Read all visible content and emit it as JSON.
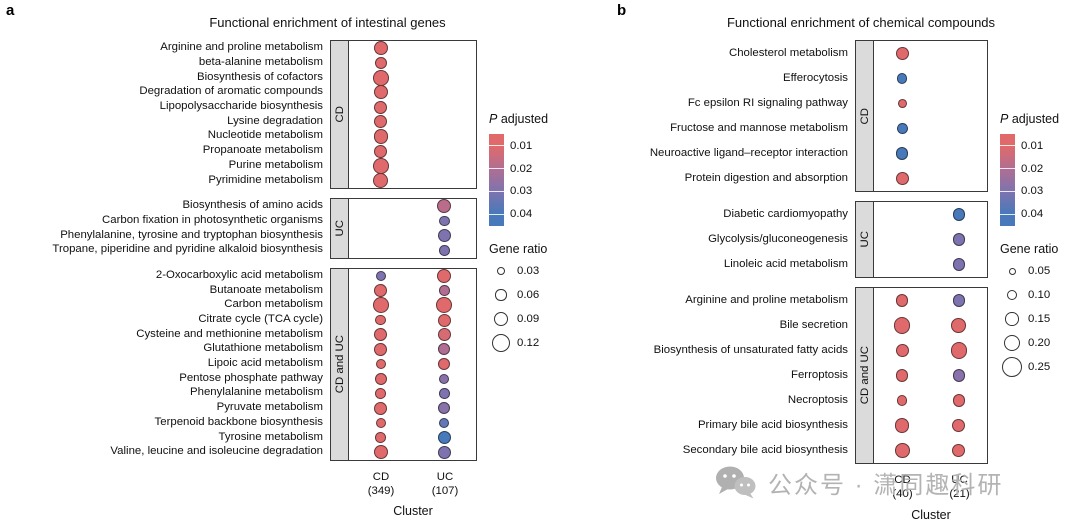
{
  "watermark": {
    "text": "公众号 · 潇同趣科研",
    "icon": "wechat-icon"
  },
  "chart_data": [
    {
      "type": "dot",
      "letter": "a",
      "title": "Functional enrichment of intestinal genes",
      "xlabel": "Cluster",
      "columns": [
        {
          "label": "CD",
          "count": "(349)"
        },
        {
          "label": "UC",
          "count": "(107)"
        }
      ],
      "legend": {
        "p_title_italic": "P",
        "p_title_rest": " adjusted",
        "p_ticks": [
          0.01,
          0.02,
          0.03,
          0.04
        ],
        "ratio_title": "Gene ratio",
        "ratio_ticks": [
          0.03,
          0.06,
          0.09,
          0.12
        ]
      },
      "size_scale": {
        "domain": [
          0.03,
          0.12
        ],
        "range": [
          8,
          18
        ]
      },
      "color_scale": {
        "domain": [
          0.01,
          0.04
        ],
        "colors": [
          "#E06A6B",
          "#B06E92",
          "#7E73AF",
          "#4879BA"
        ]
      },
      "facets": [
        {
          "label": "CD",
          "rows": [
            {
              "label": "Arginine and proline metabolism",
              "dots": [
                {
                  "gene_ratio": 0.085,
                  "p_adj": 0.01
                },
                null
              ]
            },
            {
              "label": "beta-alanine metabolism",
              "dots": [
                {
                  "gene_ratio": 0.065,
                  "p_adj": 0.01
                },
                null
              ]
            },
            {
              "label": "Biosynthesis of cofactors",
              "dots": [
                {
                  "gene_ratio": 0.1,
                  "p_adj": 0.01
                },
                null
              ]
            },
            {
              "label": "Degradation of aromatic compounds",
              "dots": [
                {
                  "gene_ratio": 0.085,
                  "p_adj": 0.01
                },
                null
              ]
            },
            {
              "label": "Lipopolysaccharide biosynthesis",
              "dots": [
                {
                  "gene_ratio": 0.075,
                  "p_adj": 0.01
                },
                null
              ]
            },
            {
              "label": "Lysine degradation",
              "dots": [
                {
                  "gene_ratio": 0.075,
                  "p_adj": 0.01
                },
                null
              ]
            },
            {
              "label": "Nucleotide metabolism",
              "dots": [
                {
                  "gene_ratio": 0.085,
                  "p_adj": 0.01
                },
                null
              ]
            },
            {
              "label": "Propanoate metabolism",
              "dots": [
                {
                  "gene_ratio": 0.075,
                  "p_adj": 0.01
                },
                null
              ]
            },
            {
              "label": "Purine metabolism",
              "dots": [
                {
                  "gene_ratio": 0.1,
                  "p_adj": 0.01
                },
                null
              ]
            },
            {
              "label": "Pyrimidine metabolism",
              "dots": [
                {
                  "gene_ratio": 0.095,
                  "p_adj": 0.01
                },
                null
              ]
            }
          ]
        },
        {
          "label": "UC",
          "rows": [
            {
              "label": "Biosynthesis of amino acids",
              "dots": [
                null,
                {
                  "gene_ratio": 0.085,
                  "p_adj": 0.018
                }
              ]
            },
            {
              "label": "Carbon fixation in photosynthetic organisms",
              "dots": [
                null,
                {
                  "gene_ratio": 0.055,
                  "p_adj": 0.03
                }
              ]
            },
            {
              "label": "Phenylalanine, tyrosine and tryptophan biosynthesis",
              "dots": [
                null,
                {
                  "gene_ratio": 0.075,
                  "p_adj": 0.03
                }
              ]
            },
            {
              "label": "Tropane, piperidine and pyridine alkaloid biosynthesis",
              "dots": [
                null,
                {
                  "gene_ratio": 0.055,
                  "p_adj": 0.03
                }
              ]
            }
          ]
        },
        {
          "label": "CD and UC",
          "rows": [
            {
              "label": "2-Oxocarboxylic acid metabolism",
              "dots": [
                {
                  "gene_ratio": 0.05,
                  "p_adj": 0.03
                },
                {
                  "gene_ratio": 0.085,
                  "p_adj": 0.01
                }
              ]
            },
            {
              "label": "Butanoate metabolism",
              "dots": [
                {
                  "gene_ratio": 0.075,
                  "p_adj": 0.01
                },
                {
                  "gene_ratio": 0.055,
                  "p_adj": 0.02
                }
              ]
            },
            {
              "label": "Carbon metabolism",
              "dots": [
                {
                  "gene_ratio": 0.1,
                  "p_adj": 0.01
                },
                {
                  "gene_ratio": 0.1,
                  "p_adj": 0.01
                }
              ]
            },
            {
              "label": "Citrate cycle (TCA cycle)",
              "dots": [
                {
                  "gene_ratio": 0.055,
                  "p_adj": 0.01
                },
                {
                  "gene_ratio": 0.075,
                  "p_adj": 0.01
                }
              ]
            },
            {
              "label": "Cysteine and methionine metabolism",
              "dots": [
                {
                  "gene_ratio": 0.075,
                  "p_adj": 0.01
                },
                {
                  "gene_ratio": 0.075,
                  "p_adj": 0.012
                }
              ]
            },
            {
              "label": "Glutathione metabolism",
              "dots": [
                {
                  "gene_ratio": 0.075,
                  "p_adj": 0.01
                },
                {
                  "gene_ratio": 0.065,
                  "p_adj": 0.02
                }
              ]
            },
            {
              "label": "Lipoic acid metabolism",
              "dots": [
                {
                  "gene_ratio": 0.05,
                  "p_adj": 0.01
                },
                {
                  "gene_ratio": 0.065,
                  "p_adj": 0.01
                }
              ]
            },
            {
              "label": "Pentose phosphate pathway",
              "dots": [
                {
                  "gene_ratio": 0.065,
                  "p_adj": 0.01
                },
                {
                  "gene_ratio": 0.05,
                  "p_adj": 0.028
                }
              ]
            },
            {
              "label": "Phenylalanine metabolism",
              "dots": [
                {
                  "gene_ratio": 0.055,
                  "p_adj": 0.01
                },
                {
                  "gene_ratio": 0.055,
                  "p_adj": 0.03
                }
              ]
            },
            {
              "label": "Pyruvate metabolism",
              "dots": [
                {
                  "gene_ratio": 0.075,
                  "p_adj": 0.01
                },
                {
                  "gene_ratio": 0.065,
                  "p_adj": 0.028
                }
              ]
            },
            {
              "label": "Terpenoid backbone biosynthesis",
              "dots": [
                {
                  "gene_ratio": 0.05,
                  "p_adj": 0.01
                },
                {
                  "gene_ratio": 0.05,
                  "p_adj": 0.035
                }
              ]
            },
            {
              "label": "Tyrosine metabolism",
              "dots": [
                {
                  "gene_ratio": 0.055,
                  "p_adj": 0.01
                },
                {
                  "gene_ratio": 0.075,
                  "p_adj": 0.04
                }
              ]
            },
            {
              "label": "Valine, leucine and isoleucine degradation",
              "dots": [
                {
                  "gene_ratio": 0.085,
                  "p_adj": 0.01
                },
                {
                  "gene_ratio": 0.075,
                  "p_adj": 0.03
                }
              ]
            }
          ]
        }
      ]
    },
    {
      "type": "dot",
      "letter": "b",
      "title": "Functional enrichment of chemical compounds",
      "xlabel": "Cluster",
      "columns": [
        {
          "label": "CD",
          "count": "(40)"
        },
        {
          "label": "UC",
          "count": "(21)"
        }
      ],
      "legend": {
        "p_title_italic": "P",
        "p_title_rest": " adjusted",
        "p_ticks": [
          0.01,
          0.02,
          0.03,
          0.04
        ],
        "ratio_title": "Gene ratio",
        "ratio_ticks": [
          0.05,
          0.1,
          0.15,
          0.2,
          0.25
        ]
      },
      "size_scale": {
        "domain": [
          0.05,
          0.25
        ],
        "range": [
          7,
          20
        ]
      },
      "color_scale": {
        "domain": [
          0.01,
          0.04
        ],
        "colors": [
          "#E06A6B",
          "#B06E92",
          "#7E73AF",
          "#4879BA"
        ]
      },
      "facets": [
        {
          "label": "CD",
          "rows": [
            {
              "label": "Cholesterol metabolism",
              "dots": [
                {
                  "gene_ratio": 0.14,
                  "p_adj": 0.01
                },
                null
              ]
            },
            {
              "label": "Efferocytosis",
              "dots": [
                {
                  "gene_ratio": 0.1,
                  "p_adj": 0.04
                },
                null
              ]
            },
            {
              "label": "Fc epsilon RI signaling pathway",
              "dots": [
                {
                  "gene_ratio": 0.08,
                  "p_adj": 0.01
                },
                null
              ]
            },
            {
              "label": "Fructose and mannose metabolism",
              "dots": [
                {
                  "gene_ratio": 0.11,
                  "p_adj": 0.04
                },
                null
              ]
            },
            {
              "label": "Neuroactive ligand–receptor interaction",
              "dots": [
                {
                  "gene_ratio": 0.13,
                  "p_adj": 0.04
                },
                null
              ]
            },
            {
              "label": "Protein digestion and absorption",
              "dots": [
                {
                  "gene_ratio": 0.14,
                  "p_adj": 0.01
                },
                null
              ]
            }
          ]
        },
        {
          "label": "UC",
          "rows": [
            {
              "label": "Diabetic cardiomyopathy",
              "dots": [
                null,
                {
                  "gene_ratio": 0.13,
                  "p_adj": 0.04
                }
              ]
            },
            {
              "label": "Glycolysis/gluconeogenesis",
              "dots": [
                null,
                {
                  "gene_ratio": 0.13,
                  "p_adj": 0.03
                }
              ]
            },
            {
              "label": "Linoleic acid metabolism",
              "dots": [
                null,
                {
                  "gene_ratio": 0.13,
                  "p_adj": 0.03
                }
              ]
            }
          ]
        },
        {
          "label": "CD and UC",
          "rows": [
            {
              "label": "Arginine and proline metabolism",
              "dots": [
                {
                  "gene_ratio": 0.13,
                  "p_adj": 0.01
                },
                {
                  "gene_ratio": 0.13,
                  "p_adj": 0.03
                }
              ]
            },
            {
              "label": "Bile secretion",
              "dots": [
                {
                  "gene_ratio": 0.19,
                  "p_adj": 0.01
                },
                {
                  "gene_ratio": 0.17,
                  "p_adj": 0.01
                }
              ]
            },
            {
              "label": "Biosynthesis of unsaturated fatty acids",
              "dots": [
                {
                  "gene_ratio": 0.14,
                  "p_adj": 0.01
                },
                {
                  "gene_ratio": 0.19,
                  "p_adj": 0.01
                }
              ]
            },
            {
              "label": "Ferroptosis",
              "dots": [
                {
                  "gene_ratio": 0.13,
                  "p_adj": 0.01
                },
                {
                  "gene_ratio": 0.13,
                  "p_adj": 0.028
                }
              ]
            },
            {
              "label": "Necroptosis",
              "dots": [
                {
                  "gene_ratio": 0.1,
                  "p_adj": 0.01
                },
                {
                  "gene_ratio": 0.13,
                  "p_adj": 0.01
                }
              ]
            },
            {
              "label": "Primary bile acid biosynthesis",
              "dots": [
                {
                  "gene_ratio": 0.16,
                  "p_adj": 0.01
                },
                {
                  "gene_ratio": 0.14,
                  "p_adj": 0.01
                }
              ]
            },
            {
              "label": "Secondary bile acid biosynthesis",
              "dots": [
                {
                  "gene_ratio": 0.17,
                  "p_adj": 0.01
                },
                {
                  "gene_ratio": 0.14,
                  "p_adj": 0.01
                }
              ]
            }
          ]
        }
      ]
    }
  ]
}
